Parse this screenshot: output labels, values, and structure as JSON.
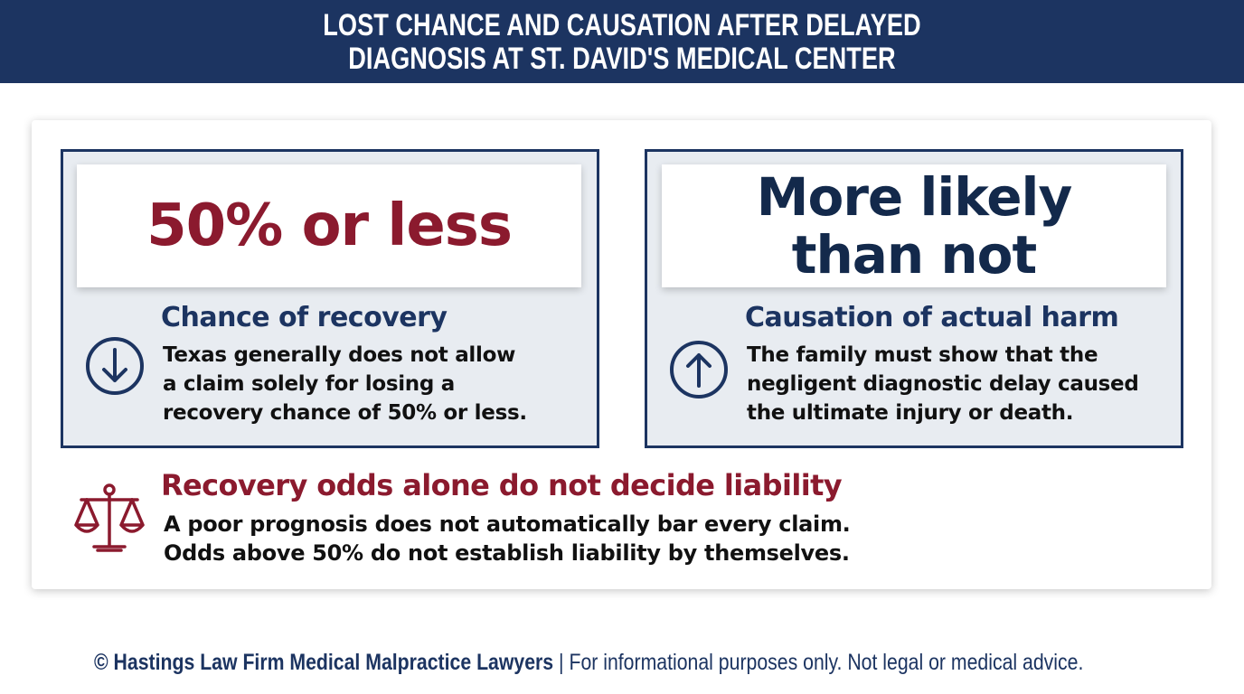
{
  "header": {
    "title_lines": [
      "LOST CHANCE AND CAUSATION AFTER DELAYED",
      "DIAGNOSIS AT ST. DAVID'S MEDICAL CENTER"
    ]
  },
  "cards": [
    {
      "headline_lines": [
        "50% or less"
      ],
      "heading": "Chance of recovery",
      "body_lines": [
        "Texas generally does not allow",
        "a claim solely for losing a",
        "recovery chance of 50% or less."
      ]
    },
    {
      "headline_lines": [
        "More likely",
        "than not"
      ],
      "heading": "Causation of actual harm",
      "body_lines": [
        "The family must show that the",
        "negligent diagnostic delay caused",
        "the ultimate injury or death."
      ]
    }
  ],
  "note": {
    "heading": "Recovery odds alone do not decide liability",
    "body_lines": [
      "A poor prognosis does not automatically bar every claim.",
      "Odds above 50% do not establish liability by themselves."
    ]
  },
  "footer": {
    "owner": "© Hastings Law Firm Medical Malpractice Lawyers",
    "note": "| For informational purposes only. Not legal or medical advice."
  }
}
